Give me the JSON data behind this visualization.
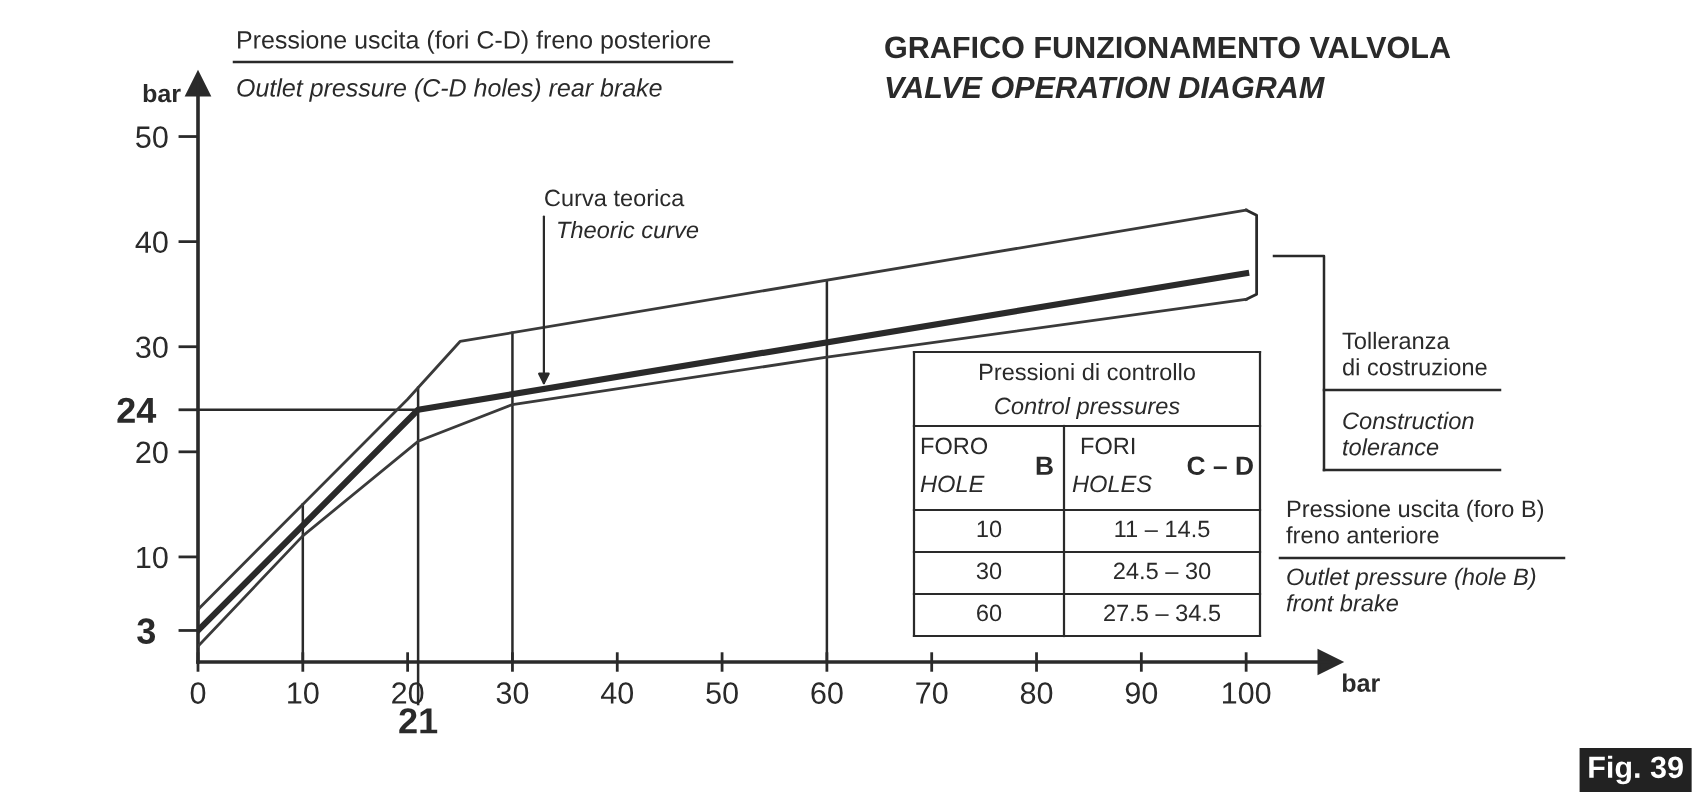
{
  "chart_data": {
    "type": "line",
    "title": "GRAFICO FUNZIONAMENTO VALVOLA",
    "subtitle": "VALVE OPERATION DIAGRAM",
    "xlabel": "bar",
    "ylabel": "bar",
    "series": [
      {
        "x": [
          0,
          21,
          100
        ],
        "values": [
          3,
          24,
          37
        ],
        "color": "#2a2a2a"
      },
      {
        "x": [
          0,
          20,
          25,
          100
        ],
        "values": [
          5,
          25,
          30.5,
          43
        ],
        "color": "#3a3a3a"
      },
      {
        "x": [
          0,
          10,
          21,
          30,
          60,
          100
        ],
        "values": [
          1.5,
          12,
          21,
          24.5,
          29,
          34.5
        ],
        "color": "#3a3a3a"
      }
    ],
    "xlim": [
      0,
      108
    ],
    "ylim": [
      0,
      55
    ],
    "xticks": [
      0,
      10,
      20,
      30,
      40,
      50,
      60,
      70,
      80,
      90,
      100
    ],
    "yticks": [
      3,
      10,
      20,
      24,
      30,
      40,
      50
    ],
    "ref_lines": [
      {
        "axis": "y",
        "value": 24,
        "label": null
      },
      {
        "axis": "x",
        "value": 10,
        "label": null
      },
      {
        "axis": "x",
        "value": 21,
        "label": "21"
      },
      {
        "axis": "x",
        "value": 30,
        "label": null
      },
      {
        "axis": "x",
        "value": 60,
        "label": null
      }
    ],
    "annotations": [
      "Pressione uscita (fori C-D) freno posteriore",
      "Outlet pressure (C-D holes) rear brake",
      {
        "text": "Curva teorica",
        "x": 33,
        "y": 26.3
      },
      "Theoric curve",
      "Tolleranza\ndi costruzione",
      "Construction\ntolerance",
      "Pressione uscita (foro B)\nfreno anteriore",
      "Outlet pressure (hole B)\nfront brake",
      "Fig. 39",
      "Pressioni di controllo",
      "Control pressures",
      "FORO",
      "HOLE",
      "B",
      "FORI",
      "HOLES",
      "C – D",
      "10",
      "11 – 14.5",
      "30",
      "24.5 – 30",
      "60",
      "27.5 – 34.5"
    ]
  }
}
